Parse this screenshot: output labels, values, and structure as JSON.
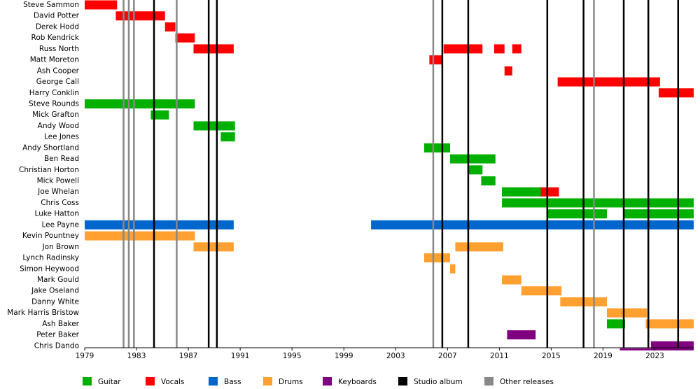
{
  "chart_data": {
    "type": "timeline",
    "xlim": [
      1979,
      2026
    ],
    "xticks": [
      1979,
      1983,
      1987,
      1991,
      1995,
      1999,
      2003,
      2007,
      2011,
      2015,
      2019,
      2023
    ],
    "legend": [
      {
        "name": "Guitar",
        "color": "#00b000"
      },
      {
        "name": "Vocals",
        "color": "#ff0000"
      },
      {
        "name": "Bass",
        "color": "#0066cc"
      },
      {
        "name": "Drums",
        "color": "#ffa030"
      },
      {
        "name": "Keyboards",
        "color": "#800080"
      }
    ],
    "events": [
      {
        "name": "Studio album",
        "color": "#000000",
        "x": [
          1984.35,
          1988.57,
          1989.2,
          2006.6,
          2008.6,
          2014.7,
          2017.5,
          2020.6,
          2022.5,
          2024.8
        ]
      },
      {
        "name": "Other releases",
        "color": "#888888",
        "x": [
          1982.0,
          1982.4,
          1982.8,
          1986.1,
          2005.9,
          2018.3
        ]
      }
    ],
    "members": [
      {
        "name": "Steve Sammon",
        "bars": [
          {
            "role": "Vocals",
            "start": 1979,
            "end": 1981.5
          }
        ]
      },
      {
        "name": "David Potter",
        "bars": [
          {
            "role": "Vocals",
            "start": 1981.4,
            "end": 1985.2
          }
        ]
      },
      {
        "name": "Derek Hodd",
        "bars": [
          {
            "role": "Vocals",
            "start": 1985.2,
            "end": 1986.0
          }
        ]
      },
      {
        "name": "Rob Kendrick",
        "bars": [
          {
            "role": "Vocals",
            "start": 1986.0,
            "end": 1987.5
          }
        ]
      },
      {
        "name": "Russ North",
        "bars": [
          {
            "role": "Vocals",
            "start": 1987.4,
            "end": 1990.5
          },
          {
            "role": "Vocals",
            "start": 2006.7,
            "end": 2009.7
          },
          {
            "role": "Vocals",
            "start": 2010.6,
            "end": 2011.4
          },
          {
            "role": "Vocals",
            "start": 2012.0,
            "end": 2012.7
          }
        ]
      },
      {
        "name": "Matt Moreton",
        "bars": [
          {
            "role": "Vocals",
            "start": 2005.6,
            "end": 2006.6
          }
        ]
      },
      {
        "name": "Ash Cooper",
        "bars": [
          {
            "role": "Vocals",
            "start": 2011.4,
            "end": 2012.0
          }
        ]
      },
      {
        "name": "George Call",
        "bars": [
          {
            "role": "Vocals",
            "start": 2015.5,
            "end": 2023.4
          }
        ]
      },
      {
        "name": "Harry Conklin",
        "bars": [
          {
            "role": "Vocals",
            "start": 2023.3,
            "end": 2026
          }
        ]
      },
      {
        "name": "Steve Rounds",
        "bars": [
          {
            "role": "Guitar",
            "start": 1979,
            "end": 1987.5
          }
        ]
      },
      {
        "name": "Mick Grafton",
        "bars": [
          {
            "role": "Guitar",
            "start": 1984.1,
            "end": 1985.5
          }
        ]
      },
      {
        "name": "Andy Wood",
        "bars": [
          {
            "role": "Guitar",
            "start": 1987.4,
            "end": 1990.6
          }
        ]
      },
      {
        "name": "Lee Jones",
        "bars": [
          {
            "role": "Guitar",
            "start": 1989.5,
            "end": 1990.6
          }
        ]
      },
      {
        "name": "Andy Shortland",
        "bars": [
          {
            "role": "Guitar",
            "start": 2005.2,
            "end": 2007.2
          }
        ]
      },
      {
        "name": "Ben Read",
        "bars": [
          {
            "role": "Guitar",
            "start": 2007.2,
            "end": 2010.7
          }
        ]
      },
      {
        "name": "Christian Horton",
        "bars": [
          {
            "role": "Guitar",
            "start": 2008.6,
            "end": 2009.7
          }
        ]
      },
      {
        "name": "Mick Powell",
        "bars": [
          {
            "role": "Guitar",
            "start": 2009.6,
            "end": 2010.7
          }
        ]
      },
      {
        "name": "Joe Whelan",
        "bars": [
          {
            "role": "Guitar",
            "start": 2011.2,
            "end": 2014.4
          },
          {
            "role": "Vocals",
            "start": 2014.2,
            "end": 2015.6
          }
        ]
      },
      {
        "name": "Chris Coss",
        "bars": [
          {
            "role": "Guitar",
            "start": 2011.2,
            "end": 2026
          }
        ]
      },
      {
        "name": "Luke Hatton",
        "bars": [
          {
            "role": "Guitar",
            "start": 2014.7,
            "end": 2019.3
          },
          {
            "role": "Guitar",
            "start": 2020.6,
            "end": 2026
          }
        ]
      },
      {
        "name": "Lee Payne",
        "bars": [
          {
            "role": "Bass",
            "start": 1979,
            "end": 1990.5
          },
          {
            "role": "Bass",
            "start": 2001.1,
            "end": 2026
          }
        ]
      },
      {
        "name": "Kevin Pountney",
        "bars": [
          {
            "role": "Drums",
            "start": 1979,
            "end": 1987.5
          }
        ]
      },
      {
        "name": "Jon Brown",
        "bars": [
          {
            "role": "Drums",
            "start": 1987.4,
            "end": 1990.5
          },
          {
            "role": "Drums",
            "start": 2007.6,
            "end": 2011.3
          }
        ]
      },
      {
        "name": "Lynch Radinsky",
        "bars": [
          {
            "role": "Drums",
            "start": 2005.2,
            "end": 2007.2
          }
        ]
      },
      {
        "name": "Simon Heywood",
        "bars": [
          {
            "role": "Drums",
            "start": 2007.2,
            "end": 2007.6
          }
        ]
      },
      {
        "name": "Mark Gould",
        "bars": [
          {
            "role": "Drums",
            "start": 2011.2,
            "end": 2012.7
          }
        ]
      },
      {
        "name": "Jake Oseland",
        "bars": [
          {
            "role": "Drums",
            "start": 2012.7,
            "end": 2015.8
          }
        ]
      },
      {
        "name": "Danny White",
        "bars": [
          {
            "role": "Drums",
            "start": 2015.7,
            "end": 2019.3
          }
        ]
      },
      {
        "name": "Mark Harris Bristow",
        "bars": [
          {
            "role": "Drums",
            "start": 2019.3,
            "end": 2022.4
          }
        ]
      },
      {
        "name": "Ash Baker",
        "bars": [
          {
            "role": "Guitar",
            "start": 2019.3,
            "end": 2020.7
          },
          {
            "role": "Drums",
            "start": 2022.3,
            "end": 2026
          }
        ]
      },
      {
        "name": "Peter Baker",
        "bars": [
          {
            "role": "Keyboards",
            "start": 2011.6,
            "end": 2013.8
          }
        ]
      },
      {
        "name": "Chris Dando",
        "bars": [
          {
            "role": "Keyboards",
            "start": 2020.3,
            "end": 2022.7,
            "style": "thin"
          },
          {
            "role": "Keyboards",
            "start": 2022.7,
            "end": 2026
          }
        ]
      }
    ]
  }
}
